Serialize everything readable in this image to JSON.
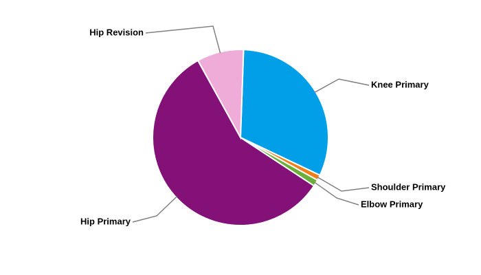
{
  "chart_data": {
    "type": "pie",
    "categories": [
      "Knee Primary",
      "Shoulder Primary",
      "Elbow Primary",
      "Hip Primary",
      "Hip Revision"
    ],
    "values": [
      31.5,
      1,
      1.2,
      57.7,
      8.6
    ],
    "colors": [
      "#009fe8",
      "#f07f1a",
      "#6aaf3a",
      "#841177",
      "#f0acd9"
    ]
  }
}
